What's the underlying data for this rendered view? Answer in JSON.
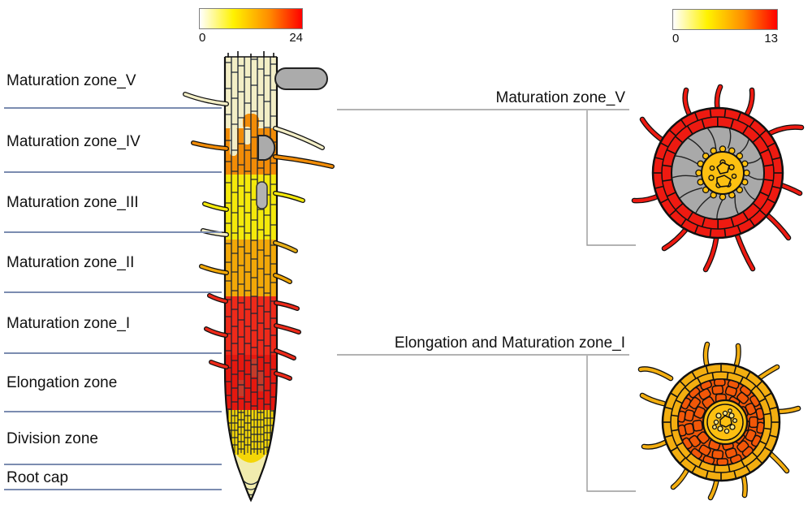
{
  "colorbars": [
    {
      "min": "0",
      "max": "24"
    },
    {
      "min": "0",
      "max": "13"
    }
  ],
  "zones": [
    {
      "label": "Maturation zone_V"
    },
    {
      "label": "Maturation zone_IV"
    },
    {
      "label": "Maturation zone_III"
    },
    {
      "label": "Maturation zone_II"
    },
    {
      "label": "Maturation zone_I"
    },
    {
      "label": "Elongation zone"
    },
    {
      "label": "Division zone"
    },
    {
      "label": "Root cap"
    }
  ],
  "callouts": [
    {
      "label": "Maturation zone_V"
    },
    {
      "label": "Elongation and Maturation zone_I"
    }
  ],
  "colors": {
    "gradient": [
      "#ffffff",
      "#fff200",
      "#ff8c00",
      "#ff0000"
    ],
    "cream": "#f3eec6",
    "orange": "#f28c07",
    "yellow": "#f4e90b",
    "gold": "#f2a808",
    "gold_light": "#e8b018",
    "red": "#ee2a1a",
    "red_dark": "#e5180f",
    "red_cell_dark": "#c43b2a",
    "division_yellow": "#f4d607",
    "cap_pale": "#f1ecae",
    "gray_cell": "#a9a9a9",
    "gray_organ": "#ababab",
    "stele_yellow": "#fdc011",
    "stele_pale": "#fde88a",
    "section1_ring": "#ee1a11",
    "section2_ring": "#f3ae10",
    "section2_cortex": "#f25708",
    "wall": "#1b2433",
    "outline": "#111111",
    "bracket_gray": "#9a9a9a",
    "zone_line": "#7b8cb0"
  }
}
